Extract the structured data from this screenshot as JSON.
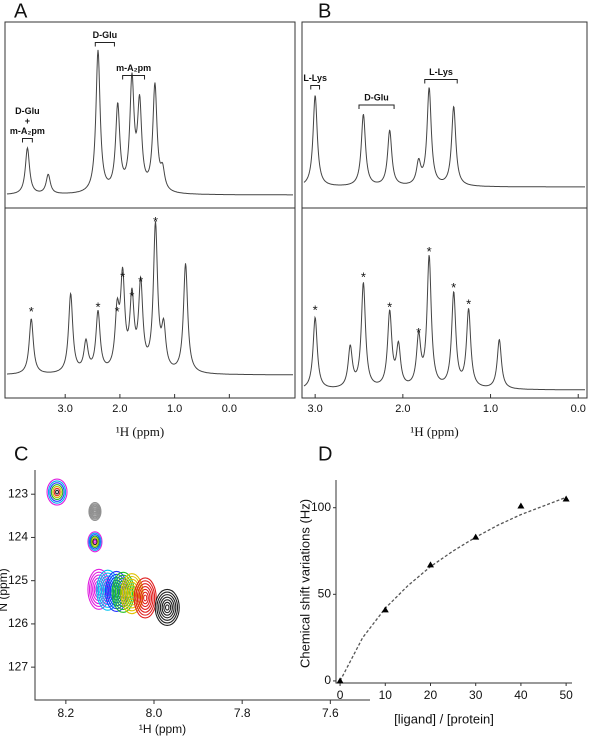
{
  "chart_data": [
    {
      "type": "spectrum",
      "label": "A",
      "xlabel": "¹H (ppm)",
      "xlim": [
        4.1,
        -1.2
      ],
      "xticks": [
        {
          "value": 3,
          "label": "3.0"
        },
        {
          "value": 2,
          "label": "2.0"
        },
        {
          "value": 1,
          "label": "1.0"
        },
        {
          "value": 0,
          "label": "0.0"
        }
      ],
      "spectra": [
        {
          "x": [
            3.69,
            3.31,
            2.4,
            2.04,
            1.78,
            1.64,
            1.36,
            1.22
          ],
          "values": [
            0.31,
            0.13,
            0.95,
            0.57,
            0.73,
            0.57,
            0.71,
            0.13
          ],
          "annotations": [
            {
              "text": [
                "D-Glu"
              ],
              "x": [
                2.45,
                2.1
              ]
            },
            {
              "text": [
                "m-A₂pm"
              ],
              "x": [
                1.95,
                1.55
              ]
            },
            {
              "text": [
                "D-Glu",
                "+",
                "m-A₂pm"
              ],
              "x": [
                3.78,
                3.6
              ]
            }
          ]
        },
        {
          "x": [
            3.62,
            2.9,
            2.62,
            2.4,
            2.05,
            1.95,
            1.78,
            1.62,
            1.35,
            1.2,
            0.8
          ],
          "values": [
            0.37,
            0.53,
            0.2,
            0.4,
            0.37,
            0.6,
            0.47,
            0.57,
            0.97,
            0.27,
            0.73
          ],
          "star": "*",
          "starred": [
            0,
            3,
            4,
            5,
            6,
            7,
            8
          ]
        }
      ]
    },
    {
      "type": "spectrum",
      "label": "B",
      "xlabel": "¹H (ppm)",
      "xlim": [
        3.15,
        -0.1
      ],
      "xticks": [
        {
          "value": 3,
          "label": "3.0"
        },
        {
          "value": 2,
          "label": "2.0"
        },
        {
          "value": 1,
          "label": "1.0"
        },
        {
          "value": 0,
          "label": "0.0"
        }
      ],
      "spectra": [
        {
          "x": [
            3.0,
            2.45,
            2.15,
            1.82,
            1.7,
            1.42
          ],
          "values": [
            0.61,
            0.48,
            0.37,
            0.15,
            0.65,
            0.53
          ],
          "annotations": [
            {
              "text": [
                "L-Lys"
              ],
              "x": [
                3.05,
                2.95
              ]
            },
            {
              "text": [
                "D-Glu"
              ],
              "x": [
                2.5,
                2.1
              ]
            },
            {
              "text": [
                "L-Lys"
              ],
              "x": [
                1.75,
                1.38
              ]
            }
          ]
        },
        {
          "x": [
            3.0,
            2.6,
            2.45,
            2.15,
            2.05,
            1.82,
            1.7,
            1.42,
            1.25,
            0.9
          ],
          "values": [
            0.48,
            0.27,
            0.7,
            0.5,
            0.27,
            0.33,
            0.87,
            0.63,
            0.52,
            0.33
          ],
          "star": "*",
          "starred": [
            0,
            2,
            3,
            5,
            6,
            7,
            8
          ]
        }
      ]
    },
    {
      "type": "contour",
      "label": "C",
      "xlabel": "¹H (ppm)",
      "ylabel": "N (ppm)",
      "xlim": [
        8.27,
        7.51
      ],
      "ylim": [
        122.44,
        127.76
      ],
      "xticks": [
        8.2,
        {
          "value": 8,
          "label": "8.0"
        },
        7.8,
        7.6
      ],
      "yticks": [
        123,
        124,
        125,
        126,
        127
      ],
      "peaks": [
        {
          "x": 8.22,
          "y": 122.95,
          "colors": [
            "#e020e0",
            "#00b0f0",
            "#2040ff",
            "#20b020",
            "#d0c000",
            "#e02020",
            "#202020"
          ]
        },
        {
          "x": 8.134,
          "y": 123.4,
          "colors": [
            "#909090"
          ]
        },
        {
          "x": 8.134,
          "y": 124.1,
          "colors": [
            "#e020e0",
            "#00b0f0",
            "#2040ff",
            "#20b020",
            "#d0c000",
            "#202020"
          ]
        },
        {
          "x": 8.125,
          "y": 125.2,
          "colors": [
            "#e020e0"
          ]
        },
        {
          "x": 8.105,
          "y": 125.22,
          "colors": [
            "#00c0f0"
          ]
        },
        {
          "x": 8.085,
          "y": 125.25,
          "colors": [
            "#2030ff"
          ]
        },
        {
          "x": 8.07,
          "y": 125.27,
          "colors": [
            "#20c020"
          ]
        },
        {
          "x": 8.05,
          "y": 125.3,
          "colors": [
            "#e0c000"
          ]
        },
        {
          "x": 8.02,
          "y": 125.4,
          "colors": [
            "#e02020"
          ]
        },
        {
          "x": 7.97,
          "y": 125.62,
          "colors": [
            "#202020"
          ]
        }
      ]
    },
    {
      "type": "scatter",
      "label": "D",
      "xlabel": "[ligand] / [protein]",
      "ylabel": "Chemical shift variations (Hz)",
      "xlim": [
        -0.9,
        51.3
      ],
      "ylim": [
        -1.2,
        116
      ],
      "xticks": [
        0,
        10,
        20,
        30,
        40,
        50
      ],
      "yticks": [
        0,
        50,
        100
      ],
      "x": [
        0,
        10,
        20,
        30,
        40,
        50
      ],
      "values": [
        0,
        41,
        67,
        83,
        101,
        105
      ],
      "color": "#000000",
      "fit": {
        "x": [
          0,
          5,
          10,
          15,
          20,
          25,
          30,
          35,
          40,
          45,
          50
        ],
        "values": [
          0,
          25,
          42,
          55,
          66,
          75,
          83,
          90,
          96,
          101,
          106
        ]
      }
    }
  ]
}
